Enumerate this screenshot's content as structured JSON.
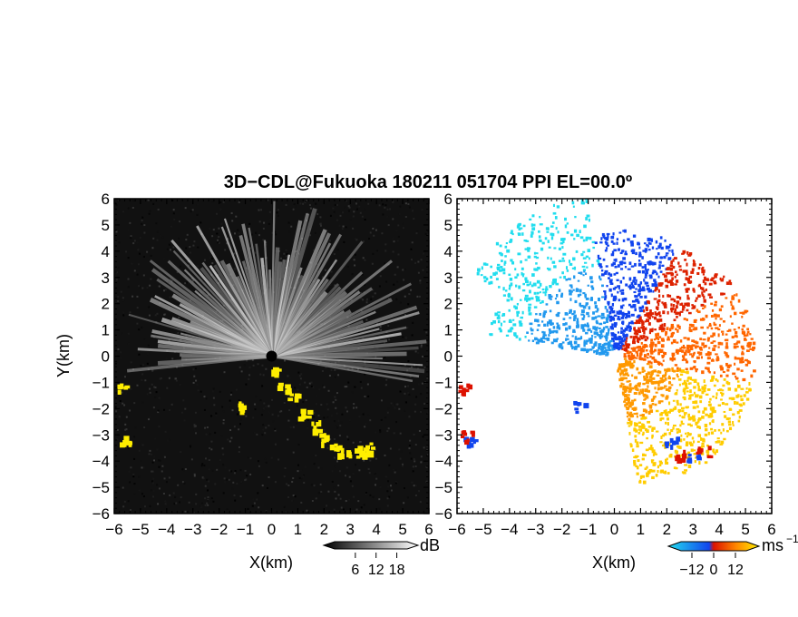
{
  "chart_data": {
    "type": "heatmap",
    "title": "3D−CDL@Fukuoka 180211 051704 PPI EL=00.0º",
    "panels": [
      {
        "id": "reflectivity",
        "xlabel": "X(km)",
        "ylabel": "Y(km)",
        "xlim": [
          -6,
          6
        ],
        "ylim": [
          -6,
          6
        ],
        "xticks": [
          "−6",
          "−5",
          "−4",
          "−3",
          "−2",
          "−1",
          "0",
          "1",
          "2",
          "3",
          "4",
          "5",
          "6"
        ],
        "yticks": [
          "6",
          "5",
          "4",
          "3",
          "2",
          "1",
          "0",
          "−1",
          "−2",
          "−3",
          "−4",
          "−5",
          "−6"
        ],
        "colorbar": {
          "unit": "dB",
          "tick_labels": [
            "6",
            "12",
            "18"
          ],
          "range": [
            0,
            21
          ],
          "colors": [
            "#000000",
            "#ffffff"
          ]
        },
        "highlight_color": "#ffee00"
      },
      {
        "id": "doppler-velocity",
        "xlabel": "X(km)",
        "ylabel": "",
        "xlim": [
          -6,
          6
        ],
        "ylim": [
          -6,
          6
        ],
        "xticks": [
          "−6",
          "−5",
          "−4",
          "−3",
          "−2",
          "−1",
          "0",
          "1",
          "2",
          "3",
          "4",
          "5",
          "6"
        ],
        "yticks": [
          "6",
          "5",
          "4",
          "3",
          "2",
          "1",
          "0",
          "−1",
          "−2",
          "−3",
          "−4",
          "−5",
          "−6"
        ],
        "colorbar": {
          "unit": "ms",
          "unit_exponent": "−1",
          "tick_labels": [
            "−12",
            "0",
            "12"
          ],
          "range": [
            -18,
            18
          ],
          "colors": [
            "#22ddee",
            "#1144ee",
            "#dd1100",
            "#ffee00"
          ]
        }
      }
    ]
  }
}
